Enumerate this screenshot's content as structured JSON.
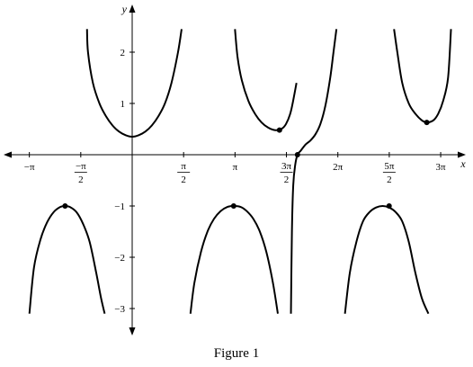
{
  "caption": "Figure 1",
  "chart_data": {
    "type": "line",
    "xlabel": "x",
    "ylabel": "y",
    "xlim": [
      -3.6,
      10.0
    ],
    "ylim": [
      -3.3,
      2.6
    ],
    "grid": false,
    "x_ticks": [
      {
        "value": -3.14159,
        "num": "−π",
        "den": ""
      },
      {
        "value": -1.5708,
        "num": "−π",
        "den": "2"
      },
      {
        "value": 1.5708,
        "num": "π",
        "den": "2"
      },
      {
        "value": 3.14159,
        "num": "π",
        "den": ""
      },
      {
        "value": 4.71239,
        "num": "3π",
        "den": "2"
      },
      {
        "value": 6.28319,
        "num": "2π",
        "den": ""
      },
      {
        "value": 7.85398,
        "num": "5π",
        "den": "2"
      },
      {
        "value": 9.42478,
        "num": "3π",
        "den": ""
      }
    ],
    "y_ticks": [
      {
        "value": 2,
        "label": "2"
      },
      {
        "value": 1,
        "label": "1"
      },
      {
        "value": -1,
        "label": "−1"
      },
      {
        "value": -2,
        "label": "−2"
      },
      {
        "value": -3,
        "label": "−3"
      }
    ],
    "series": [
      {
        "x": [
          -3.14,
          -3.0,
          -2.8,
          -2.6,
          -2.4,
          -2.2,
          -2.05,
          -1.9,
          -1.7,
          -1.5,
          -1.3,
          -1.1,
          -0.95,
          -0.84
        ],
        "y": [
          -3.1,
          -2.2,
          -1.65,
          -1.32,
          -1.12,
          -1.02,
          -1.0,
          -1.02,
          -1.12,
          -1.35,
          -1.7,
          -2.3,
          -2.8,
          -3.1
        ]
      },
      {
        "x": [
          -1.38,
          -1.35,
          -1.2,
          -1.0,
          -0.8,
          -0.6,
          -0.4,
          -0.2,
          0.0,
          0.2,
          0.4,
          0.6,
          0.8,
          1.0,
          1.2,
          1.4,
          1.51
        ],
        "y": [
          2.45,
          2.0,
          1.4,
          1.0,
          0.75,
          0.57,
          0.45,
          0.38,
          0.35,
          0.38,
          0.45,
          0.57,
          0.75,
          1.0,
          1.4,
          2.0,
          2.45
        ]
      },
      {
        "x": [
          1.78,
          1.9,
          2.1,
          2.3,
          2.5,
          2.7,
          2.9,
          3.1,
          3.32,
          3.5,
          3.7,
          3.9,
          4.1,
          4.3,
          4.45
        ],
        "y": [
          -3.1,
          -2.5,
          -1.9,
          -1.5,
          -1.25,
          -1.1,
          -1.02,
          -1.0,
          -1.02,
          -1.1,
          -1.25,
          -1.5,
          -1.9,
          -2.5,
          -3.1
        ]
      },
      {
        "x": [
          3.14,
          3.22,
          3.35,
          3.55,
          3.75,
          3.95,
          4.15,
          4.35,
          4.55,
          4.7,
          4.85,
          5.02
        ],
        "y": [
          2.45,
          1.9,
          1.45,
          1.05,
          0.8,
          0.63,
          0.53,
          0.48,
          0.5,
          0.6,
          0.85,
          1.4
        ]
      },
      {
        "x": [
          4.85,
          4.88,
          4.92,
          4.98,
          5.05,
          5.15,
          5.3,
          5.45,
          5.6,
          5.75,
          5.9,
          6.05,
          6.15,
          6.24
        ],
        "y": [
          -3.1,
          -1.5,
          -0.6,
          -0.2,
          0.0,
          0.08,
          0.2,
          0.28,
          0.4,
          0.6,
          0.95,
          1.5,
          2.0,
          2.45
        ]
      },
      {
        "x": [
          6.5,
          6.65,
          6.85,
          7.05,
          7.25,
          7.45,
          7.65,
          7.85,
          8.05,
          8.25,
          8.45,
          8.65,
          8.85,
          9.05
        ],
        "y": [
          -3.1,
          -2.3,
          -1.7,
          -1.3,
          -1.12,
          -1.03,
          -1.0,
          -1.03,
          -1.12,
          -1.3,
          -1.7,
          -2.3,
          -2.8,
          -3.1
        ]
      },
      {
        "x": [
          8.0,
          8.1,
          8.25,
          8.45,
          8.65,
          8.85,
          9.0,
          9.2,
          9.35,
          9.5,
          9.65,
          9.74
        ],
        "y": [
          2.45,
          2.0,
          1.4,
          1.0,
          0.8,
          0.67,
          0.63,
          0.67,
          0.8,
          1.05,
          1.5,
          2.45
        ]
      }
    ],
    "points": [
      {
        "x": -2.05,
        "y": -1
      },
      {
        "x": 3.1,
        "y": -1
      },
      {
        "x": 7.85,
        "y": -1
      },
      {
        "x": 4.5,
        "y": 0.48
      },
      {
        "x": 5.05,
        "y": 0.0
      },
      {
        "x": 9.0,
        "y": 0.63
      }
    ]
  }
}
